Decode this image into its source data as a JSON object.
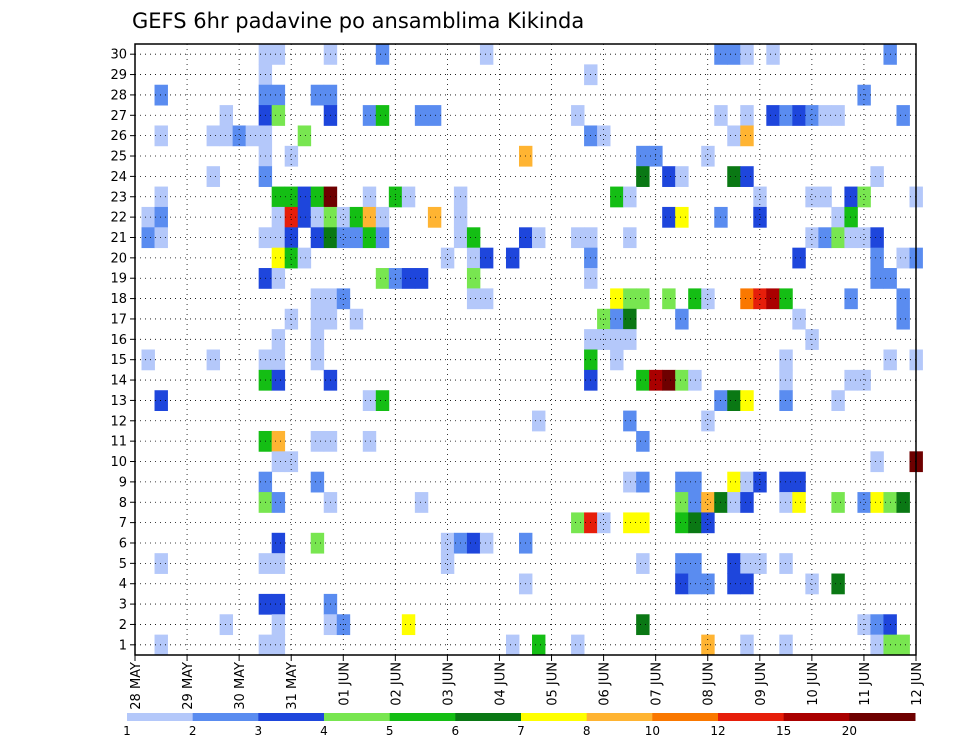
{
  "chart_data": {
    "type": "heatmap",
    "title": "GEFS 6hr padavine po ansamblima Kikinda",
    "xlabel": "",
    "ylabel": "",
    "x_ticks": [
      "28 MAY",
      "29 MAY",
      "30 MAY",
      "31 MAY",
      "01 JUN",
      "02 JUN",
      "03 JUN",
      "04 JUN",
      "05 JUN",
      "06 JUN",
      "07 JUN",
      "08 JUN",
      "09 JUN",
      "10 JUN",
      "11 JUN",
      "12 JUN"
    ],
    "x_unit": "6-hour steps from 28 MAY 00Z",
    "xlim": [
      0,
      60
    ],
    "y_ticks": [
      1,
      2,
      3,
      4,
      5,
      6,
      7,
      8,
      9,
      10,
      11,
      12,
      13,
      14,
      15,
      16,
      17,
      18,
      19,
      20,
      21,
      22,
      23,
      24,
      25,
      26,
      27,
      28,
      29,
      30
    ],
    "ylim": [
      0.5,
      30.5
    ],
    "grid": true,
    "colorbar": {
      "levels": [
        "1",
        "2",
        "3",
        "4",
        "5",
        "6",
        "7",
        "8",
        "10",
        "12",
        "15",
        "20"
      ],
      "colors": [
        "#b4c8fa",
        "#5a8cf0",
        "#1e46dc",
        "#78e650",
        "#14be14",
        "#0a7814",
        "#ffff00",
        "#ffb432",
        "#fa7800",
        "#e61e0a",
        "#aa0000",
        "#6e0000"
      ]
    },
    "cells_encoding": "[member(y), timestep(x), color_class(1-12)]",
    "cells": [
      [
        30,
        10,
        1
      ],
      [
        30,
        11,
        1
      ],
      [
        30,
        15,
        1
      ],
      [
        30,
        19,
        2
      ],
      [
        30,
        27,
        1
      ],
      [
        30,
        45,
        2
      ],
      [
        30,
        46,
        2
      ],
      [
        30,
        47,
        1
      ],
      [
        30,
        49,
        1
      ],
      [
        30,
        58,
        2
      ],
      [
        29,
        10,
        1
      ],
      [
        29,
        35,
        1
      ],
      [
        28,
        2,
        2
      ],
      [
        28,
        10,
        2
      ],
      [
        28,
        11,
        2
      ],
      [
        28,
        14,
        2
      ],
      [
        28,
        15,
        2
      ],
      [
        28,
        56,
        2
      ],
      [
        27,
        7,
        1
      ],
      [
        27,
        10,
        3
      ],
      [
        27,
        11,
        4
      ],
      [
        27,
        15,
        3
      ],
      [
        27,
        18,
        2
      ],
      [
        27,
        19,
        5
      ],
      [
        27,
        22,
        2
      ],
      [
        27,
        23,
        2
      ],
      [
        27,
        34,
        1
      ],
      [
        27,
        45,
        1
      ],
      [
        27,
        47,
        1
      ],
      [
        27,
        49,
        3
      ],
      [
        27,
        50,
        2
      ],
      [
        27,
        51,
        3
      ],
      [
        27,
        52,
        2
      ],
      [
        27,
        53,
        1
      ],
      [
        27,
        54,
        1
      ],
      [
        27,
        59,
        2
      ],
      [
        26,
        2,
        1
      ],
      [
        26,
        6,
        1
      ],
      [
        26,
        7,
        1
      ],
      [
        26,
        8,
        2
      ],
      [
        26,
        9,
        1
      ],
      [
        26,
        10,
        1
      ],
      [
        26,
        13,
        4
      ],
      [
        26,
        35,
        2
      ],
      [
        26,
        36,
        1
      ],
      [
        26,
        46,
        1
      ],
      [
        26,
        47,
        8
      ],
      [
        25,
        10,
        1
      ],
      [
        25,
        12,
        1
      ],
      [
        25,
        30,
        8
      ],
      [
        25,
        39,
        2
      ],
      [
        25,
        40,
        2
      ],
      [
        25,
        44,
        1
      ],
      [
        24,
        6,
        1
      ],
      [
        24,
        10,
        2
      ],
      [
        24,
        39,
        6
      ],
      [
        24,
        41,
        3
      ],
      [
        24,
        42,
        1
      ],
      [
        24,
        46,
        6
      ],
      [
        24,
        47,
        3
      ],
      [
        24,
        57,
        1
      ],
      [
        23,
        2,
        1
      ],
      [
        23,
        11,
        5
      ],
      [
        23,
        12,
        5
      ],
      [
        23,
        13,
        3
      ],
      [
        23,
        14,
        5
      ],
      [
        23,
        15,
        12
      ],
      [
        23,
        18,
        1
      ],
      [
        23,
        20,
        5
      ],
      [
        23,
        21,
        1
      ],
      [
        23,
        25,
        1
      ],
      [
        23,
        37,
        5
      ],
      [
        23,
        38,
        1
      ],
      [
        23,
        48,
        1
      ],
      [
        23,
        52,
        1
      ],
      [
        23,
        53,
        1
      ],
      [
        23,
        55,
        3
      ],
      [
        23,
        56,
        4
      ],
      [
        23,
        60,
        1
      ],
      [
        22,
        1,
        1
      ],
      [
        22,
        2,
        2
      ],
      [
        22,
        11,
        1
      ],
      [
        22,
        12,
        10
      ],
      [
        22,
        13,
        3
      ],
      [
        22,
        14,
        1
      ],
      [
        22,
        15,
        4
      ],
      [
        22,
        16,
        1
      ],
      [
        22,
        17,
        5
      ],
      [
        22,
        18,
        8
      ],
      [
        22,
        19,
        1
      ],
      [
        22,
        23,
        8
      ],
      [
        22,
        25,
        1
      ],
      [
        22,
        41,
        3
      ],
      [
        22,
        42,
        7
      ],
      [
        22,
        45,
        2
      ],
      [
        22,
        48,
        3
      ],
      [
        22,
        54,
        1
      ],
      [
        22,
        55,
        5
      ],
      [
        21,
        1,
        2
      ],
      [
        21,
        2,
        1
      ],
      [
        21,
        10,
        1
      ],
      [
        21,
        11,
        1
      ],
      [
        21,
        12,
        3
      ],
      [
        21,
        14,
        3
      ],
      [
        21,
        15,
        6
      ],
      [
        21,
        16,
        2
      ],
      [
        21,
        17,
        2
      ],
      [
        21,
        18,
        5
      ],
      [
        21,
        19,
        2
      ],
      [
        21,
        25,
        1
      ],
      [
        21,
        26,
        5
      ],
      [
        21,
        30,
        3
      ],
      [
        21,
        31,
        1
      ],
      [
        21,
        34,
        1
      ],
      [
        21,
        35,
        1
      ],
      [
        21,
        38,
        1
      ],
      [
        21,
        52,
        1
      ],
      [
        21,
        53,
        2
      ],
      [
        21,
        54,
        4
      ],
      [
        21,
        55,
        1
      ],
      [
        21,
        56,
        1
      ],
      [
        21,
        57,
        3
      ],
      [
        20,
        11,
        7
      ],
      [
        20,
        12,
        5
      ],
      [
        20,
        13,
        1
      ],
      [
        20,
        24,
        1
      ],
      [
        20,
        26,
        1
      ],
      [
        20,
        27,
        3
      ],
      [
        20,
        29,
        3
      ],
      [
        20,
        35,
        2
      ],
      [
        20,
        51,
        3
      ],
      [
        20,
        57,
        2
      ],
      [
        20,
        59,
        1
      ],
      [
        20,
        60,
        2
      ],
      [
        19,
        10,
        3
      ],
      [
        19,
        11,
        1
      ],
      [
        19,
        19,
        4
      ],
      [
        19,
        20,
        2
      ],
      [
        19,
        21,
        3
      ],
      [
        19,
        22,
        3
      ],
      [
        19,
        26,
        4
      ],
      [
        19,
        35,
        1
      ],
      [
        19,
        57,
        2
      ],
      [
        19,
        58,
        2
      ],
      [
        18,
        14,
        1
      ],
      [
        18,
        15,
        1
      ],
      [
        18,
        16,
        2
      ],
      [
        18,
        26,
        1
      ],
      [
        18,
        27,
        1
      ],
      [
        18,
        37,
        7
      ],
      [
        18,
        38,
        4
      ],
      [
        18,
        39,
        4
      ],
      [
        18,
        41,
        4
      ],
      [
        18,
        43,
        5
      ],
      [
        18,
        44,
        1
      ],
      [
        18,
        47,
        9
      ],
      [
        18,
        48,
        10
      ],
      [
        18,
        49,
        11
      ],
      [
        18,
        50,
        5
      ],
      [
        18,
        55,
        2
      ],
      [
        18,
        59,
        2
      ],
      [
        17,
        12,
        1
      ],
      [
        17,
        14,
        1
      ],
      [
        17,
        15,
        1
      ],
      [
        17,
        17,
        1
      ],
      [
        17,
        36,
        4
      ],
      [
        17,
        37,
        2
      ],
      [
        17,
        38,
        6
      ],
      [
        17,
        42,
        2
      ],
      [
        17,
        51,
        1
      ],
      [
        17,
        59,
        2
      ],
      [
        16,
        11,
        1
      ],
      [
        16,
        14,
        1
      ],
      [
        16,
        35,
        1
      ],
      [
        16,
        36,
        1
      ],
      [
        16,
        37,
        1
      ],
      [
        16,
        38,
        1
      ],
      [
        16,
        52,
        1
      ],
      [
        15,
        1,
        1
      ],
      [
        15,
        6,
        1
      ],
      [
        15,
        10,
        1
      ],
      [
        15,
        11,
        1
      ],
      [
        15,
        14,
        1
      ],
      [
        15,
        35,
        5
      ],
      [
        15,
        37,
        1
      ],
      [
        15,
        50,
        1
      ],
      [
        15,
        58,
        1
      ],
      [
        15,
        60,
        1
      ],
      [
        14,
        10,
        5
      ],
      [
        14,
        11,
        3
      ],
      [
        14,
        15,
        3
      ],
      [
        14,
        35,
        3
      ],
      [
        14,
        39,
        5
      ],
      [
        14,
        40,
        11
      ],
      [
        14,
        41,
        12
      ],
      [
        14,
        42,
        4
      ],
      [
        14,
        43,
        1
      ],
      [
        14,
        50,
        1
      ],
      [
        14,
        55,
        1
      ],
      [
        14,
        56,
        1
      ],
      [
        13,
        2,
        3
      ],
      [
        13,
        18,
        1
      ],
      [
        13,
        19,
        5
      ],
      [
        13,
        45,
        2
      ],
      [
        13,
        46,
        6
      ],
      [
        13,
        47,
        7
      ],
      [
        13,
        50,
        2
      ],
      [
        13,
        54,
        1
      ],
      [
        12,
        31,
        1
      ],
      [
        12,
        38,
        2
      ],
      [
        12,
        44,
        1
      ],
      [
        11,
        10,
        5
      ],
      [
        11,
        11,
        8
      ],
      [
        11,
        14,
        1
      ],
      [
        11,
        15,
        1
      ],
      [
        11,
        18,
        1
      ],
      [
        11,
        39,
        2
      ],
      [
        10,
        11,
        1
      ],
      [
        10,
        12,
        1
      ],
      [
        10,
        57,
        1
      ],
      [
        10,
        60,
        12
      ],
      [
        9,
        10,
        2
      ],
      [
        9,
        14,
        2
      ],
      [
        9,
        38,
        1
      ],
      [
        9,
        39,
        2
      ],
      [
        9,
        42,
        2
      ],
      [
        9,
        43,
        2
      ],
      [
        9,
        46,
        7
      ],
      [
        9,
        47,
        1
      ],
      [
        9,
        48,
        3
      ],
      [
        9,
        50,
        3
      ],
      [
        9,
        51,
        3
      ],
      [
        8,
        10,
        4
      ],
      [
        8,
        11,
        2
      ],
      [
        8,
        15,
        1
      ],
      [
        8,
        22,
        1
      ],
      [
        8,
        42,
        4
      ],
      [
        8,
        43,
        2
      ],
      [
        8,
        44,
        8
      ],
      [
        8,
        45,
        6
      ],
      [
        8,
        46,
        1
      ],
      [
        8,
        47,
        3
      ],
      [
        8,
        50,
        1
      ],
      [
        8,
        51,
        7
      ],
      [
        8,
        54,
        4
      ],
      [
        8,
        56,
        2
      ],
      [
        8,
        57,
        7
      ],
      [
        8,
        58,
        4
      ],
      [
        8,
        59,
        6
      ],
      [
        7,
        34,
        4
      ],
      [
        7,
        35,
        10
      ],
      [
        7,
        36,
        1
      ],
      [
        7,
        38,
        7
      ],
      [
        7,
        39,
        7
      ],
      [
        7,
        42,
        5
      ],
      [
        7,
        43,
        6
      ],
      [
        7,
        44,
        3
      ],
      [
        6,
        11,
        3
      ],
      [
        6,
        14,
        4
      ],
      [
        6,
        24,
        1
      ],
      [
        6,
        25,
        2
      ],
      [
        6,
        26,
        3
      ],
      [
        6,
        27,
        1
      ],
      [
        6,
        30,
        2
      ],
      [
        5,
        2,
        1
      ],
      [
        5,
        10,
        1
      ],
      [
        5,
        11,
        1
      ],
      [
        5,
        24,
        1
      ],
      [
        5,
        39,
        1
      ],
      [
        5,
        42,
        2
      ],
      [
        5,
        43,
        2
      ],
      [
        5,
        46,
        3
      ],
      [
        5,
        47,
        1
      ],
      [
        5,
        48,
        1
      ],
      [
        5,
        50,
        1
      ],
      [
        4,
        30,
        1
      ],
      [
        4,
        42,
        3
      ],
      [
        4,
        43,
        2
      ],
      [
        4,
        44,
        2
      ],
      [
        4,
        46,
        3
      ],
      [
        4,
        47,
        3
      ],
      [
        4,
        52,
        1
      ],
      [
        4,
        54,
        6
      ],
      [
        3,
        10,
        3
      ],
      [
        3,
        11,
        3
      ],
      [
        3,
        15,
        2
      ],
      [
        2,
        7,
        1
      ],
      [
        2,
        11,
        1
      ],
      [
        2,
        15,
        1
      ],
      [
        2,
        16,
        2
      ],
      [
        2,
        21,
        7
      ],
      [
        2,
        39,
        6
      ],
      [
        2,
        56,
        1
      ],
      [
        2,
        57,
        2
      ],
      [
        2,
        58,
        3
      ],
      [
        1,
        2,
        1
      ],
      [
        1,
        10,
        1
      ],
      [
        1,
        11,
        1
      ],
      [
        1,
        29,
        1
      ],
      [
        1,
        31,
        5
      ],
      [
        1,
        34,
        1
      ],
      [
        1,
        44,
        8
      ],
      [
        1,
        47,
        1
      ],
      [
        1,
        50,
        1
      ],
      [
        1,
        57,
        1
      ],
      [
        1,
        58,
        4
      ],
      [
        1,
        59,
        4
      ]
    ]
  }
}
